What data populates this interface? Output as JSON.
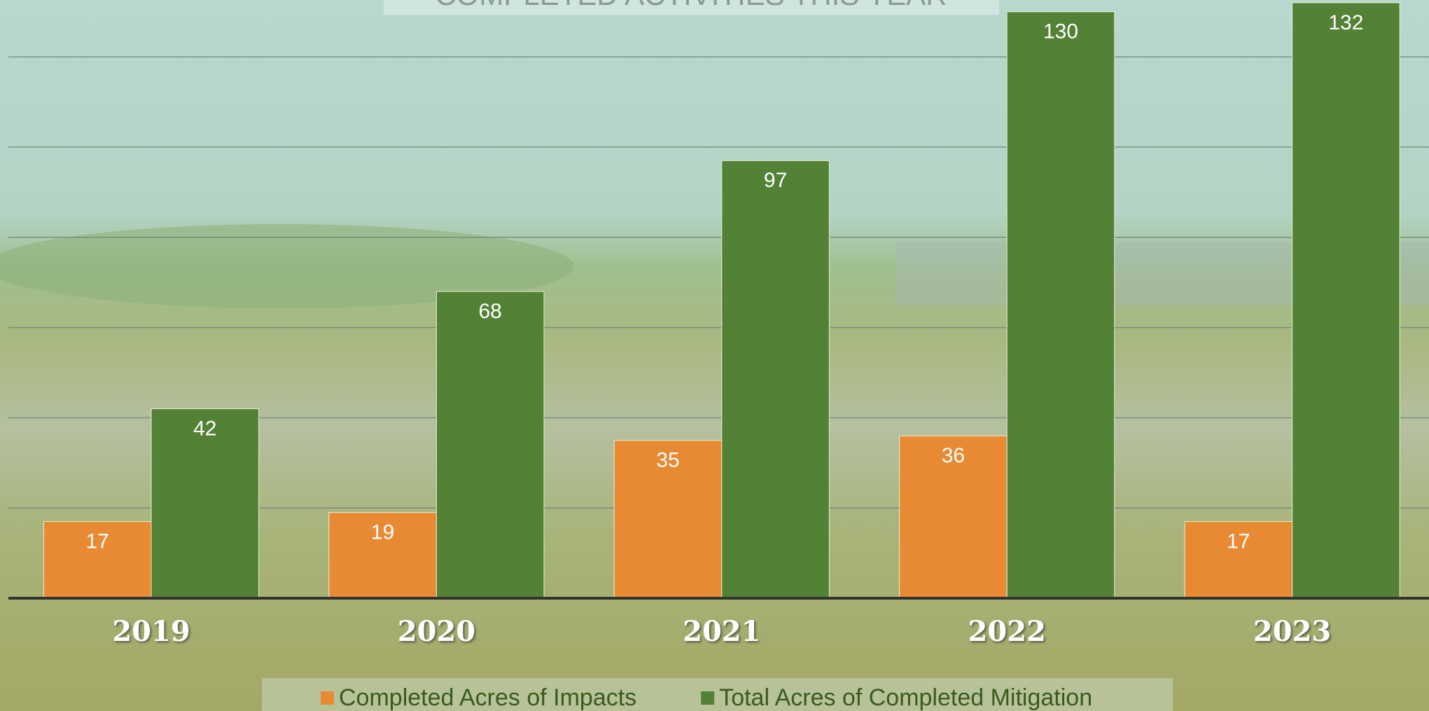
{
  "chart_data": {
    "type": "bar",
    "title": "COMPLETED ACTIVITIES THIS YEAR",
    "categories": [
      "2019",
      "2020",
      "2021",
      "2022",
      "2023"
    ],
    "series": [
      {
        "name": "Completed Acres of Impacts",
        "color": "#e88a33",
        "values": [
          17,
          19,
          35,
          36,
          17
        ]
      },
      {
        "name": "Total Acres of Completed Mitigation",
        "color": "#538135",
        "values": [
          42,
          68,
          97,
          130,
          132
        ]
      }
    ],
    "ylim": [
      0,
      140
    ],
    "yticks": [
      0,
      20,
      40,
      60,
      80,
      100,
      120
    ],
    "grid": true,
    "legend": "bottom"
  }
}
